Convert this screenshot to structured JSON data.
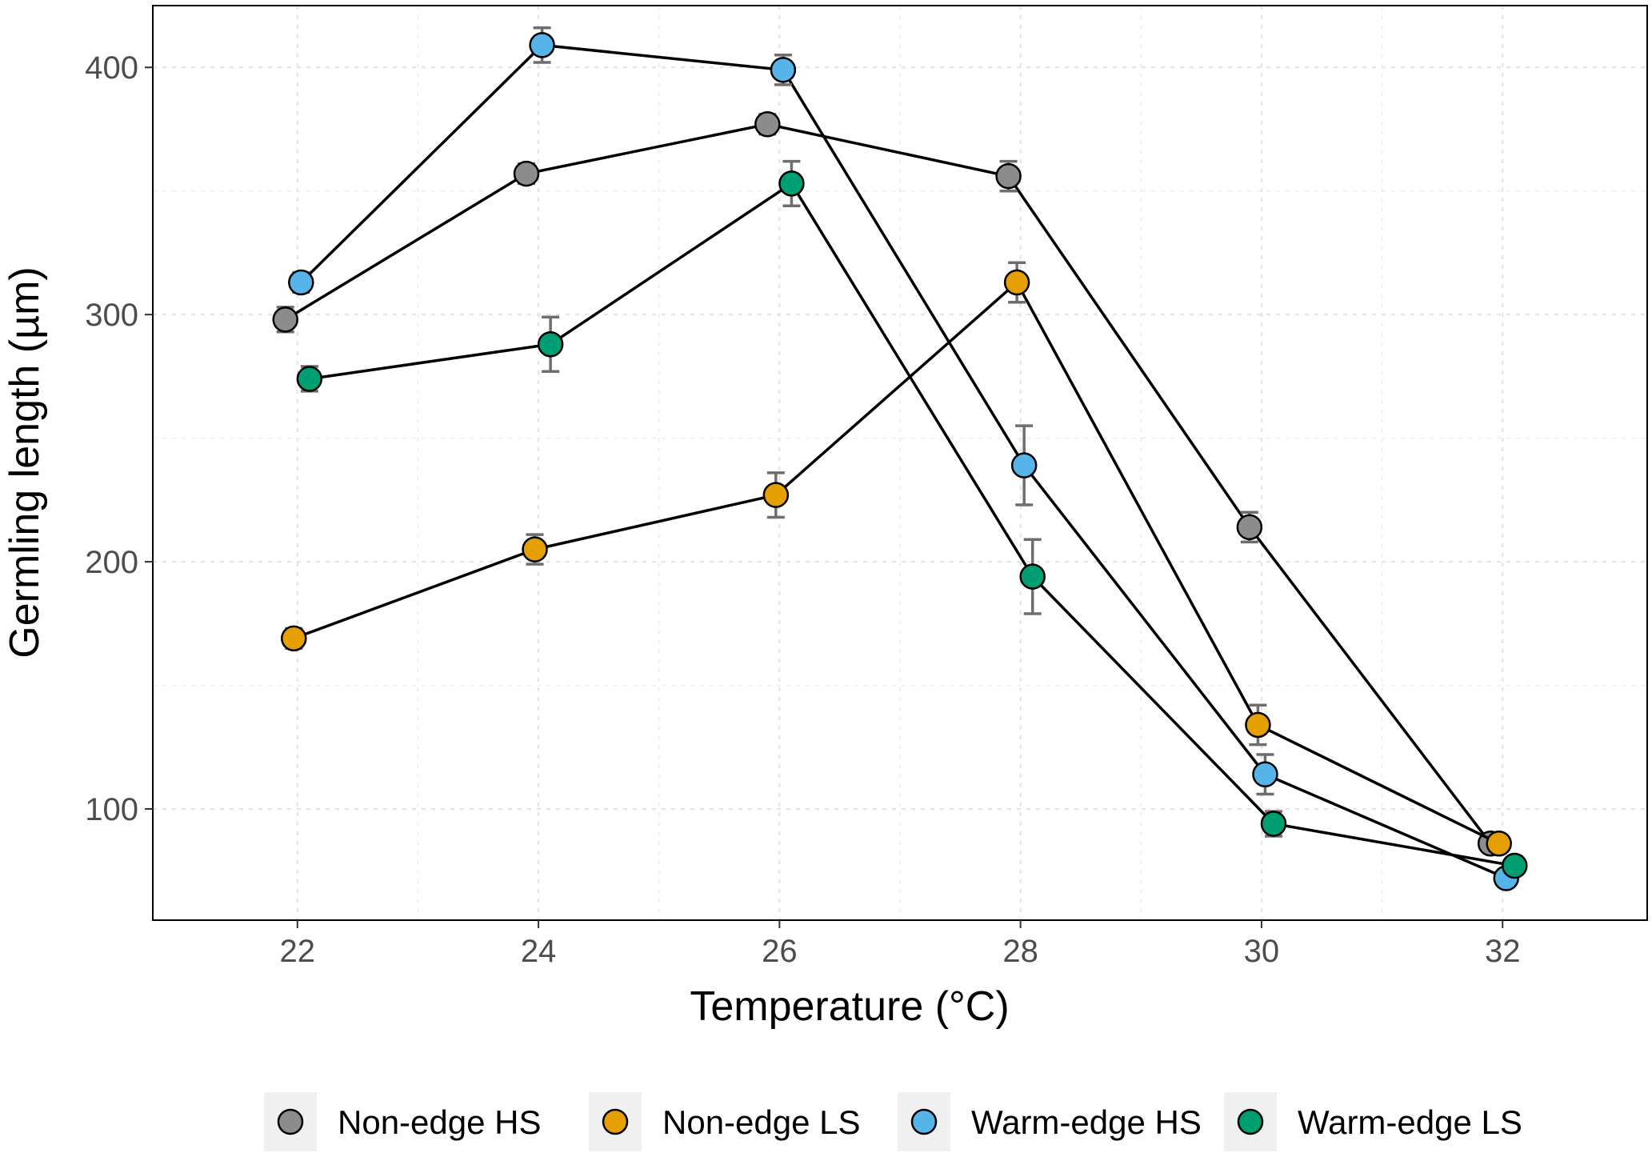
{
  "chart_data": {
    "type": "line",
    "title": "",
    "xlabel": "Temperature (°C)",
    "ylabel": "Germling length (µm)",
    "xlim": [
      20.8,
      33.2
    ],
    "ylim": [
      55,
      425
    ],
    "xticks": [
      22,
      24,
      26,
      28,
      30,
      32
    ],
    "xtick_labels": [
      "22",
      "24",
      "26",
      "28",
      "30",
      "32"
    ],
    "yticks": [
      100,
      200,
      300,
      400
    ],
    "ytick_labels": [
      "100",
      "200",
      "300",
      "400"
    ],
    "grid": true,
    "legend_position": "bottom",
    "x": [
      22,
      24,
      26,
      28,
      30,
      32
    ],
    "series": [
      {
        "name": "Non-edge HS",
        "color": "#8c8c8c",
        "dodge": -0.1,
        "values": [
          298,
          357,
          377,
          356,
          214,
          86
        ],
        "errors": [
          5,
          4,
          4,
          6,
          6,
          3
        ]
      },
      {
        "name": "Non-edge LS",
        "color": "#e69f00",
        "dodge": -0.03,
        "values": [
          169,
          205,
          227,
          313,
          134,
          86
        ],
        "errors": [
          4,
          6,
          9,
          8,
          8,
          3
        ]
      },
      {
        "name": "Warm-edge HS",
        "color": "#56b4e9",
        "dodge": 0.03,
        "values": [
          313,
          409,
          399,
          239,
          114,
          72
        ],
        "errors": [
          4,
          7,
          6,
          16,
          8,
          3
        ]
      },
      {
        "name": "Warm-edge LS",
        "color": "#009e73",
        "dodge": 0.1,
        "values": [
          274,
          288,
          353,
          194,
          94,
          77
        ],
        "errors": [
          5,
          11,
          9,
          15,
          5,
          3
        ]
      }
    ]
  }
}
